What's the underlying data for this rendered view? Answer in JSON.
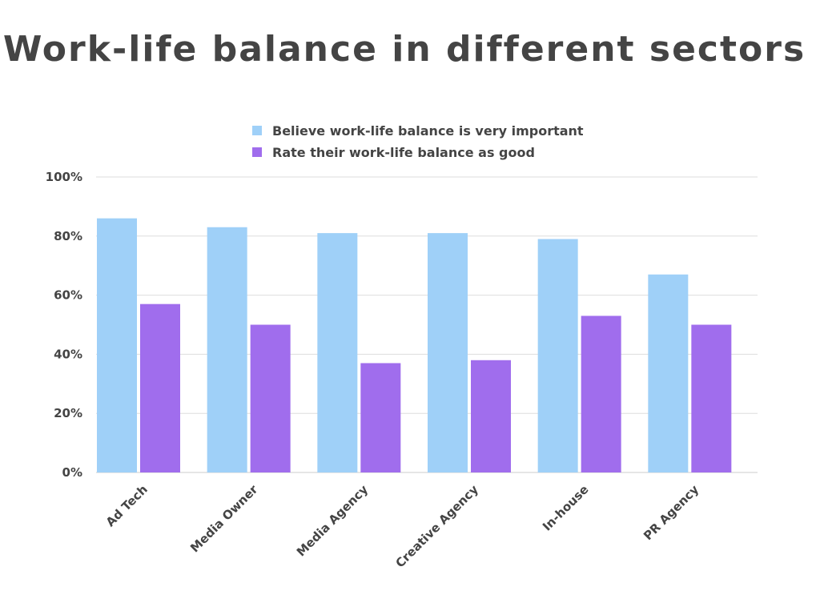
{
  "chart_data": {
    "type": "bar",
    "title": "Work-life balance in different sectors",
    "categories": [
      "Ad Tech",
      "Media Owner",
      "Media Agency",
      "Creative Agency",
      "In-house",
      "PR Agency"
    ],
    "series": [
      {
        "name": "Believe work-life balance is very important",
        "color": "#9fd0f8",
        "values": [
          86,
          83,
          81,
          81,
          79,
          67
        ]
      },
      {
        "name": "Rate their work-life balance as good",
        "color": "#a06ded",
        "values": [
          57,
          50,
          37,
          38,
          53,
          50
        ]
      }
    ],
    "ylim": [
      0,
      100
    ],
    "yticks": [
      0,
      20,
      40,
      60,
      80,
      100
    ],
    "ytick_labels": [
      "0%",
      "20%",
      "40%",
      "60%",
      "80%",
      "100%"
    ],
    "grid": true,
    "legend": "top-center"
  }
}
